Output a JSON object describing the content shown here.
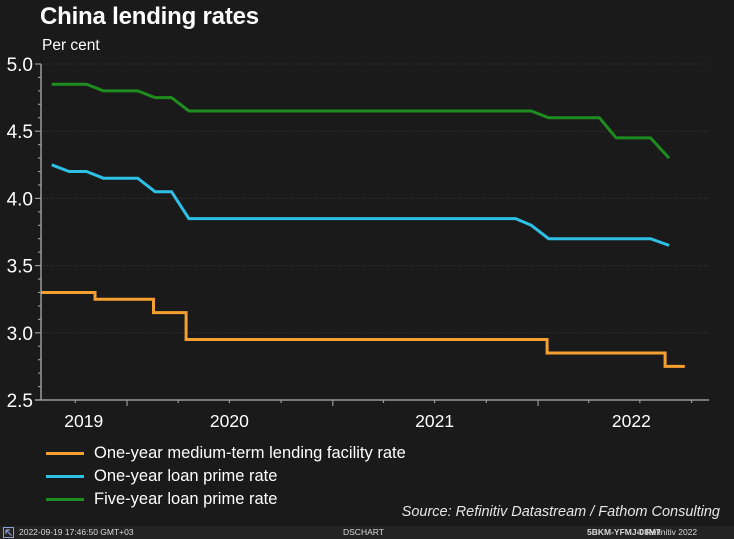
{
  "header": {
    "title": "China lending rates",
    "subtitle": "Per cent"
  },
  "chart_data": {
    "type": "line",
    "title": "China lending rates",
    "ylabel": "Per cent",
    "xlabel": "",
    "ylim": [
      2.5,
      5.0
    ],
    "yticks": [
      2.5,
      3.0,
      3.5,
      4.0,
      4.5,
      5.0
    ],
    "ytick_labels": [
      "2.5",
      "3.0",
      "3.5",
      "4.0",
      "4.5",
      "5.0"
    ],
    "yminor_step": 0.1,
    "xlim": [
      "2019-08-01",
      "2022-11-01"
    ],
    "xtick_labels": [
      {
        "label": "2019",
        "date": "2019-10-16"
      },
      {
        "label": "2020",
        "date": "2020-07-01"
      },
      {
        "label": "2021",
        "date": "2021-07-01"
      },
      {
        "label": "2022",
        "date": "2022-06-16"
      }
    ],
    "xmajor_ticks": [
      "2020-01-01",
      "2021-01-01",
      "2022-01-01"
    ],
    "xminor_ticks": [
      "2019-10-01",
      "2020-04-01",
      "2020-07-01",
      "2020-10-01",
      "2021-04-01",
      "2021-07-01",
      "2021-10-01",
      "2022-04-01",
      "2022-07-01",
      "2022-10-01"
    ],
    "grid": true,
    "legend_position": "bottom-left",
    "series": [
      {
        "name": "One-year medium-term lending facility rate",
        "color": "#f5a030",
        "style": "step",
        "points": [
          {
            "date": "2019-08-01",
            "value": 3.3
          },
          {
            "date": "2019-11-05",
            "value": 3.25
          },
          {
            "date": "2020-02-17",
            "value": 3.15
          },
          {
            "date": "2020-04-15",
            "value": 2.95
          },
          {
            "date": "2022-01-17",
            "value": 2.85
          },
          {
            "date": "2022-08-15",
            "value": 2.75
          },
          {
            "date": "2022-09-19",
            "value": 2.75
          }
        ]
      },
      {
        "name": "One-year loan prime rate",
        "color": "#2ec0e4",
        "style": "line",
        "points": [
          {
            "date": "2019-08-20",
            "value": 4.25
          },
          {
            "date": "2019-09-20",
            "value": 4.2
          },
          {
            "date": "2019-10-21",
            "value": 4.2
          },
          {
            "date": "2019-11-20",
            "value": 4.15
          },
          {
            "date": "2019-12-20",
            "value": 4.15
          },
          {
            "date": "2020-01-20",
            "value": 4.15
          },
          {
            "date": "2020-02-20",
            "value": 4.05
          },
          {
            "date": "2020-03-20",
            "value": 4.05
          },
          {
            "date": "2020-04-20",
            "value": 3.85
          },
          {
            "date": "2021-11-22",
            "value": 3.85
          },
          {
            "date": "2021-12-20",
            "value": 3.8
          },
          {
            "date": "2022-01-20",
            "value": 3.7
          },
          {
            "date": "2022-07-20",
            "value": 3.7
          },
          {
            "date": "2022-08-22",
            "value": 3.65
          }
        ]
      },
      {
        "name": "Five-year loan prime rate",
        "color": "#1e8c1e",
        "style": "line",
        "points": [
          {
            "date": "2019-08-20",
            "value": 4.85
          },
          {
            "date": "2019-10-21",
            "value": 4.85
          },
          {
            "date": "2019-11-20",
            "value": 4.8
          },
          {
            "date": "2020-01-20",
            "value": 4.8
          },
          {
            "date": "2020-02-20",
            "value": 4.75
          },
          {
            "date": "2020-03-20",
            "value": 4.75
          },
          {
            "date": "2020-04-20",
            "value": 4.65
          },
          {
            "date": "2021-12-20",
            "value": 4.65
          },
          {
            "date": "2022-01-20",
            "value": 4.6
          },
          {
            "date": "2022-04-20",
            "value": 4.6
          },
          {
            "date": "2022-05-20",
            "value": 4.45
          },
          {
            "date": "2022-07-20",
            "value": 4.45
          },
          {
            "date": "2022-08-22",
            "value": 4.3
          }
        ]
      }
    ]
  },
  "legend": {
    "items": [
      {
        "label": "One-year medium-term lending facility rate",
        "color": "#f5a030"
      },
      {
        "label": "One-year loan prime rate",
        "color": "#2ec0e4"
      },
      {
        "label": "Five-year loan prime rate",
        "color": "#1e8c1e"
      }
    ]
  },
  "source": "Source: Refinitiv Datastream / Fathom Consulting",
  "footer": {
    "icon": "refinitiv-arrow-icon",
    "timestamp": "2022-09-19 17:46:50 GMT+03",
    "app": "DSCHART",
    "code": "5BKM-YFMJ-08M7",
    "copyright": "© Refinitiv 2022"
  },
  "colors": {
    "background": "#1a1a1a",
    "footer_background": "#232323",
    "axis": "#9a9a9a",
    "grid": "#3a3a3a"
  }
}
